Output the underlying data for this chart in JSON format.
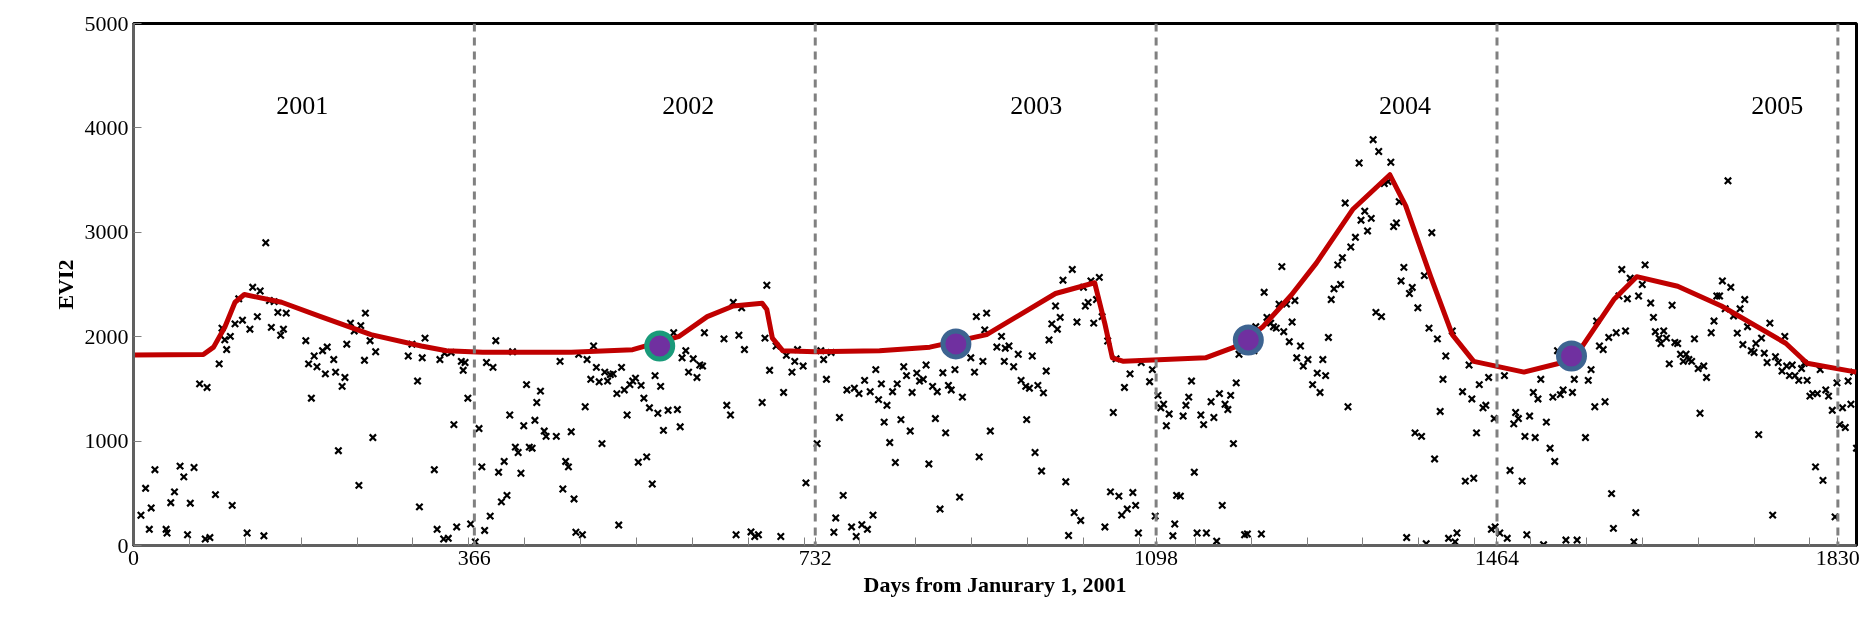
{
  "chart_data": {
    "type": "scatter",
    "xlabel": "Days from Janurary 1, 2001",
    "ylabel": "EVI2",
    "xlim": [
      0,
      1850
    ],
    "ylim": [
      0,
      5000
    ],
    "xticks": [
      0,
      {
        "value": 60,
        "label": null
      },
      {
        "value": 120,
        "label": null
      },
      {
        "value": 180,
        "label": null
      },
      {
        "value": 240,
        "label": null
      },
      {
        "value": 300,
        "label": null
      },
      {
        "value": 360,
        "label": null
      },
      366,
      {
        "value": 420,
        "label": null
      },
      {
        "value": 480,
        "label": null
      },
      {
        "value": 540,
        "label": null
      },
      {
        "value": 600,
        "label": null
      },
      {
        "value": 660,
        "label": null
      },
      {
        "value": 720,
        "label": null
      },
      732,
      {
        "value": 780,
        "label": null
      },
      {
        "value": 840,
        "label": null
      },
      {
        "value": 900,
        "label": null
      },
      {
        "value": 960,
        "label": null
      },
      {
        "value": 1020,
        "label": null
      },
      {
        "value": 1080,
        "label": null
      },
      1098,
      {
        "value": 1140,
        "label": null
      },
      {
        "value": 1200,
        "label": null
      },
      {
        "value": 1260,
        "label": null
      },
      {
        "value": 1320,
        "label": null
      },
      {
        "value": 1380,
        "label": null
      },
      {
        "value": 1440,
        "label": null
      },
      1464,
      {
        "value": 1500,
        "label": null
      },
      {
        "value": 1560,
        "label": null
      },
      {
        "value": 1620,
        "label": null
      },
      {
        "value": 1680,
        "label": null
      },
      {
        "value": 1740,
        "label": null
      },
      {
        "value": 1800,
        "label": null
      },
      1830
    ],
    "yticks": [
      0,
      1000,
      2000,
      3000,
      4000,
      5000
    ],
    "grid": false,
    "ref_lines": [
      {
        "axis": "x",
        "value": 366,
        "color": "#808080",
        "line_style": "dashed"
      },
      {
        "axis": "x",
        "value": 732,
        "color": "#808080",
        "line_style": "dashed"
      },
      {
        "axis": "x",
        "value": 1098,
        "color": "#808080",
        "line_style": "dashed"
      },
      {
        "axis": "x",
        "value": 1464,
        "color": "#808080",
        "line_style": "dashed"
      },
      {
        "axis": "x",
        "value": 1830,
        "color": "#808080",
        "line_style": "dashed"
      }
    ],
    "annotations": [
      "2001",
      "2002",
      "2003",
      "2004",
      "2005"
    ],
    "series": [
      {
        "marker": "cross",
        "color": "#000000",
        "x": [
          8,
          13,
          23,
          19,
          17,
          35,
          36,
          40,
          44,
          50,
          54,
          61,
          65,
          58,
          77,
          82,
          71,
          79,
          88,
          92,
          98,
          100,
          95,
          104,
          106,
          109,
          113,
          117,
          125,
          122,
          128,
          136,
          133,
          140,
          142,
          146,
          148,
          151,
          155,
          158,
          161,
          164,
          185,
          188,
          191,
          194,
          197,
          203,
          206,
          208,
          215,
          217,
          220,
          224,
          227,
          229,
          233,
          237,
          242,
          244,
          249,
          248,
          254,
          257,
          260,
          299,
          295,
          305,
          307,
          313,
          310,
          323,
          326,
          333,
          338,
          329,
          334,
          341,
          344,
          347,
          352,
          354,
          356,
          359,
          362,
          367,
          371,
          374,
          377,
          379,
          383,
          386,
          389,
          392,
          395,
          398,
          401,
          404,
          407,
          410,
          413,
          416,
          419,
          422,
          425,
          428,
          431,
          433,
          437,
          441,
          443,
          454,
          458,
          461,
          464,
          467,
          470,
          473,
          475,
          482,
          478,
          485,
          487,
          494,
          491,
          497,
          500,
          503,
          506,
          509,
          512,
          515,
          519,
          521,
          524,
          527,
          530,
          533,
          536,
          539,
          542,
          545,
          548,
          551,
          554,
          557,
          560,
          563,
          566,
          569,
          574,
          580,
          584,
          587,
          589,
          593,
          596,
          601,
          605,
          608,
          611,
          613,
          634,
          637,
          641,
          647,
          644,
          650,
          653,
          656,
          663,
          667,
          671,
          675,
          678,
          680,
          683,
          690,
          695,
          698,
          701,
          707,
          710,
          713,
          719,
          722,
          734,
          738,
          741,
          744,
          749,
          752,
          754,
          758,
          762,
          766,
          771,
          774,
          776,
          779,
          782,
          785,
          788,
          791,
          794,
          797,
          800,
          803,
          806,
          809,
          812,
          815,
          818,
          820,
          824,
          827,
          830,
          834,
          836,
          841,
          844,
          848,
          851,
          854,
          858,
          861,
          863,
          866,
          869,
          872,
          875,
          878,
          882,
          887,
          890,
          899,
          903,
          908,
          912,
          914,
          905,
          916,
          920,
          932,
          927,
          936,
          940,
          935,
          945,
          950,
          953,
          958,
          962,
          965,
          971,
          959,
          968,
          975,
          977,
          980,
          983,
          986,
          990,
          992,
          995,
          998,
          1001,
          1004,
          1008,
          1010,
          1013,
          1017,
          1020,
          1022,
          1025,
          1028,
          1031,
          1034,
          1037,
          1040,
          1043,
          1046,
          1049,
          1052,
          1055,
          1058,
          1061,
          1064,
          1067,
          1070,
          1073,
          1076,
          1079,
          1082,
          1091,
          1094,
          1097,
          1100,
          1103,
          1106,
          1109,
          1112,
          1116,
          1118,
          1120,
          1124,
          1127,
          1130,
          1133,
          1136,
          1139,
          1142,
          1146,
          1149,
          1152,
          1157,
          1160,
          1163,
          1166,
          1169,
          1172,
          1175,
          1178,
          1181,
          1184,
          1187,
          1193,
          1196,
          1203,
          1205,
          1211,
          1214,
          1217,
          1221,
          1224,
          1227,
          1230,
          1233,
          1235,
          1238,
          1241,
          1247,
          1244,
          1253,
          1249,
          1256,
          1261,
          1266,
          1271,
          1274,
          1277,
          1280,
          1283,
          1286,
          1289,
          1293,
          1296,
          1298,
          1301,
          1304,
          1307,
          1312,
          1316,
          1318,
          1322,
          1325,
          1329,
          1331,
          1334,
          1337,
          1340,
          1343,
          1347,
          1350,
          1353,
          1356,
          1359,
          1361,
          1364,
          1367,
          1370,
          1373,
          1376,
          1379,
          1383,
          1386,
          1388,
          1391,
          1394,
          1397,
          1400,
          1403,
          1406,
          1409,
          1412,
          1416,
          1419,
          1421,
          1427,
          1430,
          1434,
          1437,
          1439,
          1442,
          1445,
          1449,
          1452,
          1455,
          1458,
          1461,
          1462,
          1467,
          1472,
          1475,
          1478,
          1482,
          1484,
          1487,
          1491,
          1494,
          1496,
          1499,
          1503,
          1505,
          1508,
          1511,
          1514,
          1517,
          1521,
          1524,
          1526,
          1529,
          1532,
          1535,
          1538,
          1545,
          1547,
          1550,
          1559,
          1562,
          1565,
          1569,
          1571,
          1574,
          1578,
          1580,
          1584,
          1587,
          1589,
          1592,
          1595,
          1598,
          1602,
          1604,
          1607,
          1611,
          1613,
          1616,
          1620,
          1623,
          1629,
          1632,
          1634,
          1638,
          1640,
          1643,
          1646,
          1649,
          1652,
          1655,
          1658,
          1661,
          1664,
          1667,
          1670,
          1673,
          1676,
          1680,
          1682,
          1686,
          1689,
          1694,
          1697,
          1700,
          1703,
          1706,
          1709,
          1712,
          1715,
          1718,
          1722,
          1725,
          1728,
          1730,
          1733,
          1737,
          1740,
          1742,
          1745,
          1748,
          1751,
          1754,
          1757,
          1760,
          1763,
          1766,
          1770,
          1773,
          1775,
          1778,
          1781,
          1784,
          1788,
          1791,
          1794,
          1797,
          1800,
          1803,
          1806,
          1808,
          1811,
          1814,
          1817,
          1820,
          1824,
          1827,
          1829,
          1832,
          1835,
          1838,
          1841,
          1844,
          1847,
          1850
        ],
        "values": [
          290,
          548,
          726,
          360,
          155,
          155,
          120,
          410,
          514,
          760,
          657,
          405,
          747,
          103,
          62,
          76,
          1548,
          1514,
          487,
          1740,
          1970,
          1877,
          2082,
          2003,
          384,
          2123,
          2363,
          2158,
          2072,
          120,
          2473,
          2438,
          2192,
          93,
          2900,
          2346,
          2089,
          2336,
          2233,
          2014,
          2072,
          2226,
          1962,
          1740,
          1411,
          1815,
          1712,
          1866,
          1644,
          1901,
          1781,
          1661,
          908,
          1524,
          1610,
          1928,
          2130,
          2055,
          576,
          2106,
          2226,
          1774,
          1962,
          1034,
          1856,
          1928,
          1815,
          1575,
          370,
          1986,
          1798,
          726,
          155,
          62,
          69,
          1781,
          1842,
          1849,
          1158,
          178,
          1764,
          1678,
          1753,
          1411,
          206,
          35,
          1120,
          753,
          144,
          1753,
          281,
          1706,
          1962,
          702,
          418,
          805,
          480,
          1250,
          1856,
          942,
          891,
          692,
          1147,
          1541,
          942,
          932,
          1199,
          1370,
          1479,
          1096,
          1045,
          1045,
          1764,
          541,
          805,
          753,
          1089,
          446,
          127,
          103,
          1832,
          1329,
          1781,
          1911,
          1592,
          1706,
          1568,
          976,
          1661,
          1575,
          1637,
          1644,
          1455,
          196,
          1706,
          1490,
          1250,
          1541,
          1575,
          1603,
          798,
          1534,
          1411,
          849,
          1319,
          589,
          1627,
          1267,
          1524,
          1103,
          1295,
          2038,
          1302,
          1137,
          1798,
          1866,
          1661,
          1788,
          1610,
          1729,
          1719,
          2038,
          1979,
          1343,
          1250,
          103,
          2328,
          2014,
          2277,
          1877,
          130,
          86,
          103,
          1370,
          1986,
          2493,
          1678,
          1911,
          86,
          1466,
          1822,
          1661,
          1764,
          1877,
          1719,
          600,
          976,
          1866,
          1781,
          1592,
          1849,
          127,
          264,
          1226,
          480,
          1490,
          178,
          1507,
          86,
          1455,
          199,
          1582,
          155,
          1473,
          291,
          1685,
          1397,
          1548,
          1182,
          1343,
          986,
          1473,
          795,
          1548,
          1206,
          1712,
          1627,
          1096,
          1466,
          1651,
          1575,
          1592,
          1729,
          781,
          1524,
          1216,
          1473,
          349,
          1654,
          1079,
          1534,
          1490,
          1685,
          463,
          1421,
          1798,
          1661,
          849,
          1764,
          2065,
          2192,
          2226,
          1096,
          2003,
          1901,
          1890,
          1911,
          1764,
          1712,
          1832,
          1582,
          1524,
          1507,
          1815,
          1534,
          1206,
          891,
          713,
          1462,
          1671,
          1969,
          2123,
          2294,
          2072,
          2185,
          2541,
          610,
          96,
          2644,
          315,
          2140,
          240,
          2473,
          2294,
          2329,
          2534,
          2130,
          2356,
          2568,
          2192,
          178,
          1959,
          514,
          1274,
          1788,
          473,
          291,
          1514,
          349,
          1644,
          507,
          384,
          120,
          1753,
          1569,
          1685,
          281,
          1438,
          1319,
          1353,
          1147,
          1260,
          93,
          206,
          480,
          473,
          1240,
          1343,
          1421,
          1575,
          702,
          120,
          1250,
          1158,
          120,
          1377,
          1226,
          41,
          1455,
          384,
          1353,
          1302,
          1438,
          976,
          1558,
          1832,
          103,
          110,
          1866,
          2096,
          110,
          2425,
          2185,
          2130,
          2096,
          2082,
          2312,
          2671,
          2048,
          2312,
          1952,
          2346,
          2140,
          1911,
          1798,
          1719,
          1781,
          1541,
          1651,
          1466,
          1781,
          1627,
          1993,
          2356,
          2459,
          2688,
          2500,
          2757,
          3280,
          1329,
          2859,
          2952,
          3664,
          3116,
          3202,
          3013,
          3133,
          3887,
          2233,
          3774,
          2192,
          3466,
          3486,
          3671,
          3054,
          3089,
          3294,
          2534,
          2664,
          76,
          2414,
          2472,
          1079,
          2277,
          1045,
          2585,
          17,
          2082,
          2996,
          829,
          1979,
          1284,
          1592,
          1815,
          69,
          2055,
          35,
          120,
          1473,
          617,
          1729,
          1404,
          644,
          1079,
          1541,
          1319,
          1343,
          1610,
          155,
          1216,
          178,
          120,
          1627,
          69,
          719,
          1165,
          1274,
          1216,
          617,
          1045,
          103,
          1240,
          1466,
          1034,
          1404,
          1592,
          7,
          1182,
          932,
          1421,
          805,
          1866,
          1445,
          1490,
          52,
          1466,
          1592,
          52,
          1034,
          1582,
          1685,
          1329,
          2150,
          1911,
          1877,
          1377,
          1993,
          497,
          164,
          2038,
          2390,
          2644,
          2055,
          2363,
          2561,
          35,
          315,
          2390,
          2500,
          2688,
          2322,
          2185,
          2048,
          1986,
          1935,
          2055,
          1986,
          1740,
          2301,
          1945,
          1935,
          1832,
          1764,
          1832,
          1781,
          1764,
          1979,
          1695,
          1267,
          1719,
          1610,
          2038,
          2150,
          2390,
          2390,
          2534,
          2267,
          3493,
          2473,
          2199,
          2034,
          2267,
          1925,
          2356,
          2096,
          1866,
          1849,
          1935,
          1062,
          1986,
          1842,
          1753,
          2130,
          291,
          1808,
          1753,
          1671,
          2003,
          1719,
          1627,
          1729,
          1627,
          1582,
          1695,
          1746,
          1582,
          1431,
          1455,
          753,
          1455,
          1685,
          624,
          1490,
          1431,
          1295,
          274,
          1558,
          1158,
          1319,
          1130,
          1575,
          1353,
          1661,
          932
        ]
      },
      {
        "type": "line",
        "marker": "none",
        "line_style": "solid",
        "color": "#c00000",
        "x": [
          0,
          75,
          86,
          98,
          109,
          119,
          159,
          201,
          255,
          309,
          336,
          375,
          470,
          536,
          586,
          616,
          644,
          675,
          680,
          686,
          697,
          732,
          801,
          855,
          916,
          990,
          1032,
          1043,
          1051,
          1063,
          1151,
          1182,
          1212,
          1243,
          1270,
          1309,
          1349,
          1366,
          1393,
          1416,
          1439,
          1493,
          1531,
          1555,
          1590,
          1614,
          1658,
          1705,
          1774,
          1797,
          1850
        ],
        "values": [
          1825,
          1830,
          1900,
          2090,
          2330,
          2404,
          2330,
          2192,
          2020,
          1911,
          1866,
          1850,
          1850,
          1876,
          2004,
          2192,
          2294,
          2321,
          2260,
          1986,
          1866,
          1856,
          1866,
          1900,
          2020,
          2414,
          2517,
          2123,
          1798,
          1764,
          1798,
          1900,
          2090,
          2397,
          2705,
          3218,
          3551,
          3253,
          2570,
          2020,
          1764,
          1661,
          1746,
          1900,
          2362,
          2575,
          2483,
          2294,
          1937,
          1746,
          1661
        ]
      },
      {
        "type": "scatter",
        "marker": "circle",
        "color": "#7030a0",
        "colors": [
          "#1a9a7a",
          "#3d6491",
          "#3d6491",
          "#3d6491"
        ],
        "x": [
          565,
          883,
          1197,
          1544
        ],
        "values": [
          1911,
          1931,
          1969,
          1815
        ]
      }
    ]
  }
}
